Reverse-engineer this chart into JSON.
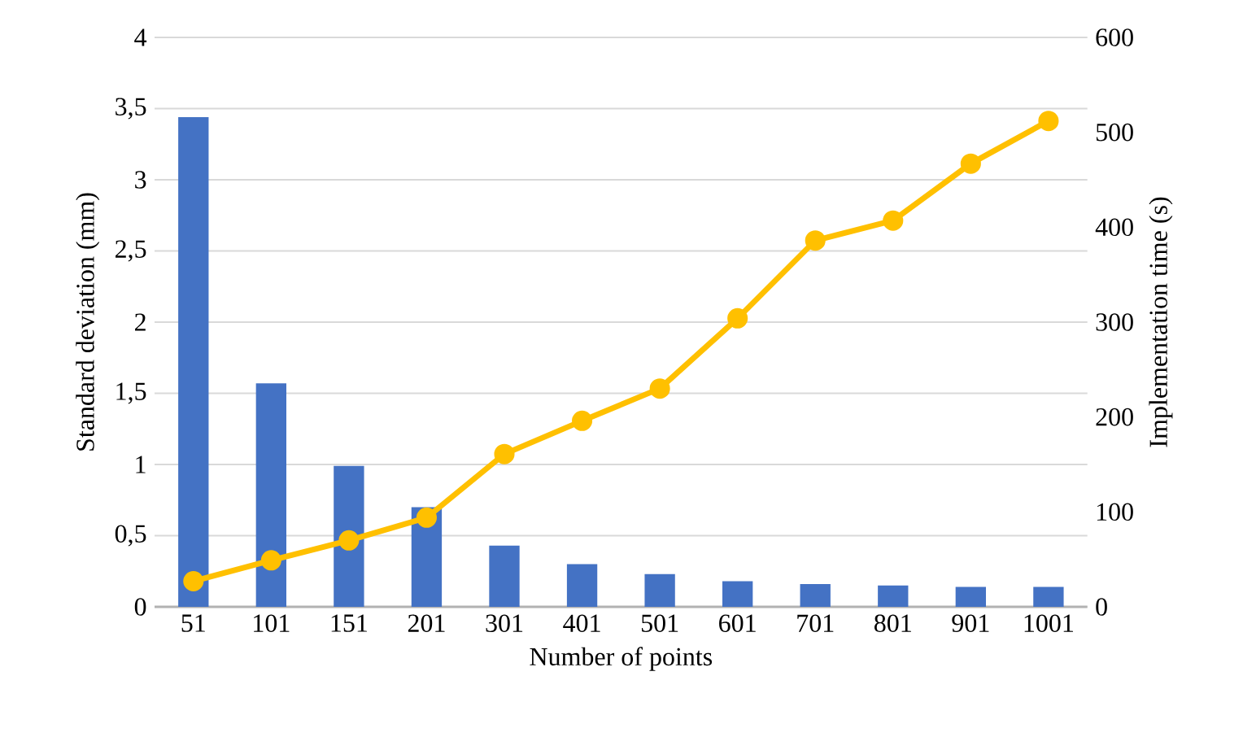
{
  "chart_data": {
    "type": "bar",
    "xlabel": "Number of points",
    "ylabel": "Standard deviation (mm)",
    "y2label": "Implementation time (s)",
    "categories": [
      "51",
      "101",
      "151",
      "201",
      "301",
      "401",
      "501",
      "601",
      "701",
      "801",
      "901",
      "1001"
    ],
    "series": [
      {
        "color": "#4472c4",
        "values": [
          3.44,
          1.57,
          0.99,
          0.7,
          0.43,
          0.3,
          0.23,
          0.18,
          0.16,
          0.15,
          0.14,
          0.14
        ]
      },
      {
        "type": "line",
        "axis": "y2",
        "color": "#ffc000",
        "marker": "circle",
        "values": [
          27,
          49,
          70,
          94,
          161,
          196,
          230,
          304,
          386,
          407,
          467,
          512
        ]
      }
    ],
    "ylim": [
      0,
      4
    ],
    "yticks": [
      0,
      {
        "value": 0.5,
        "label": "0,5"
      },
      1,
      {
        "value": 1.5,
        "label": "1,5"
      },
      2,
      {
        "value": 2.5,
        "label": "2,5"
      },
      3,
      {
        "value": 3.5,
        "label": "3,5"
      },
      4
    ],
    "y2lim": [
      0,
      600
    ],
    "y2ticks": [
      0,
      100,
      200,
      300,
      400,
      500,
      600
    ],
    "grid": "y"
  }
}
